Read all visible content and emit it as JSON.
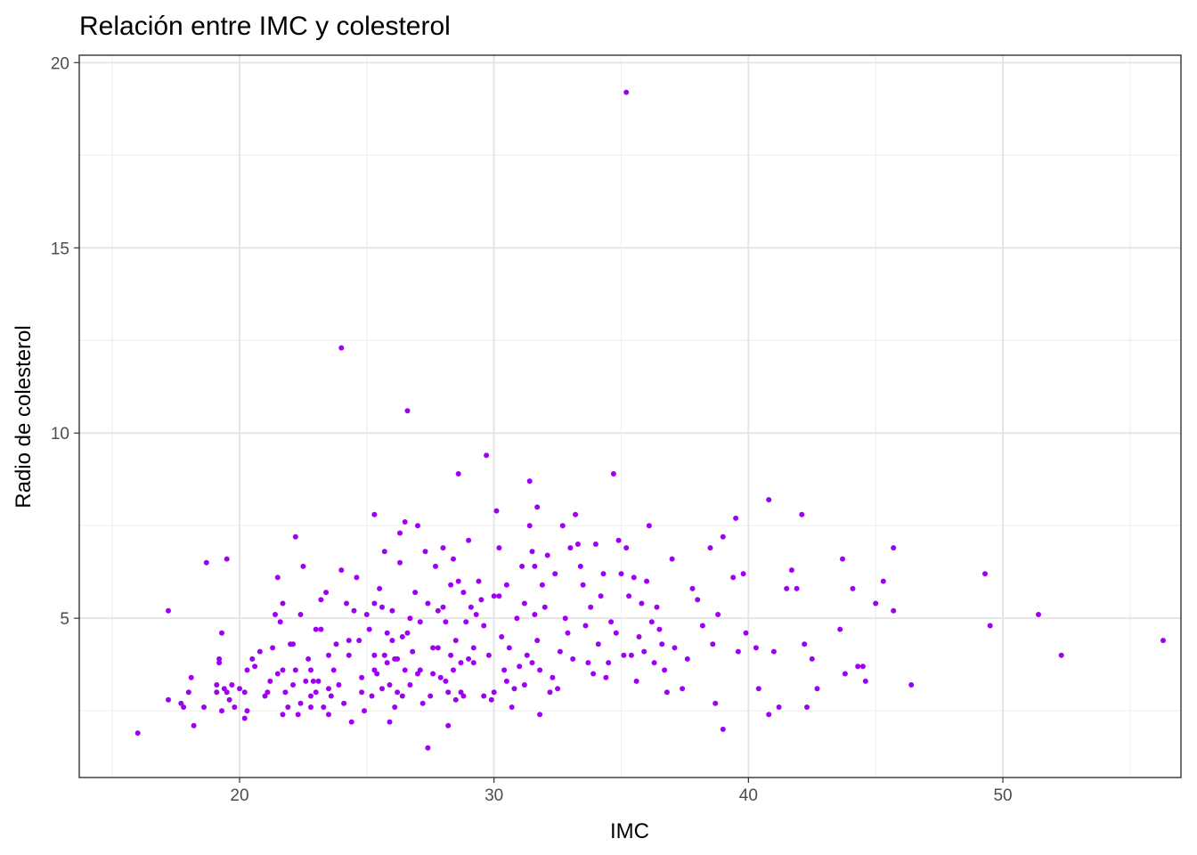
{
  "chart_data": {
    "type": "scatter",
    "title": "Relación entre IMC y colesterol",
    "xlabel": "IMC",
    "ylabel": "Radio de colesterol",
    "xlim": [
      13.7,
      57.0
    ],
    "ylim": [
      0.7,
      20.2
    ],
    "x_ticks": [
      20,
      30,
      40,
      50
    ],
    "y_ticks": [
      5,
      10,
      15,
      20
    ],
    "x_tick_labels": [
      "20",
      "30",
      "40",
      "50"
    ],
    "y_tick_labels": [
      "5",
      "10",
      "15",
      "20"
    ],
    "grid": true,
    "point_color": "#9f00f3",
    "points": [
      [
        16.0,
        1.9
      ],
      [
        17.2,
        5.2
      ],
      [
        17.2,
        2.8
      ],
      [
        17.7,
        2.7
      ],
      [
        17.8,
        2.6
      ],
      [
        18.0,
        3.0
      ],
      [
        18.1,
        3.4
      ],
      [
        18.2,
        2.1
      ],
      [
        18.6,
        2.6
      ],
      [
        18.7,
        6.5
      ],
      [
        19.1,
        3.0
      ],
      [
        19.1,
        3.2
      ],
      [
        19.2,
        3.8
      ],
      [
        19.2,
        3.9
      ],
      [
        19.3,
        4.6
      ],
      [
        19.3,
        2.5
      ],
      [
        19.4,
        3.1
      ],
      [
        19.5,
        3.0
      ],
      [
        19.5,
        6.6
      ],
      [
        19.6,
        2.8
      ],
      [
        19.7,
        3.2
      ],
      [
        19.8,
        2.6
      ],
      [
        20.0,
        3.1
      ],
      [
        20.2,
        2.3
      ],
      [
        20.2,
        3.0
      ],
      [
        20.3,
        3.6
      ],
      [
        20.3,
        2.5
      ],
      [
        20.5,
        3.9
      ],
      [
        20.6,
        3.7
      ],
      [
        20.8,
        4.1
      ],
      [
        21.0,
        2.9
      ],
      [
        21.1,
        3.0
      ],
      [
        21.2,
        3.3
      ],
      [
        21.3,
        4.2
      ],
      [
        21.4,
        5.1
      ],
      [
        21.5,
        6.1
      ],
      [
        21.5,
        3.5
      ],
      [
        21.6,
        4.9
      ],
      [
        21.7,
        5.4
      ],
      [
        21.7,
        3.6
      ],
      [
        21.7,
        2.4
      ],
      [
        21.8,
        3.0
      ],
      [
        21.9,
        2.6
      ],
      [
        22.0,
        4.3
      ],
      [
        22.1,
        4.3
      ],
      [
        22.1,
        3.2
      ],
      [
        22.2,
        7.2
      ],
      [
        22.2,
        3.6
      ],
      [
        22.3,
        2.4
      ],
      [
        22.4,
        5.1
      ],
      [
        22.4,
        2.7
      ],
      [
        22.5,
        6.4
      ],
      [
        22.6,
        3.3
      ],
      [
        22.7,
        3.9
      ],
      [
        22.8,
        2.9
      ],
      [
        22.8,
        3.6
      ],
      [
        22.8,
        2.6
      ],
      [
        22.9,
        3.3
      ],
      [
        23.0,
        4.7
      ],
      [
        23.0,
        3.0
      ],
      [
        23.1,
        3.3
      ],
      [
        23.2,
        5.5
      ],
      [
        23.2,
        4.7
      ],
      [
        23.3,
        2.6
      ],
      [
        23.4,
        5.7
      ],
      [
        23.5,
        4.0
      ],
      [
        23.5,
        3.1
      ],
      [
        23.5,
        2.4
      ],
      [
        23.6,
        2.9
      ],
      [
        23.7,
        3.6
      ],
      [
        23.8,
        4.3
      ],
      [
        23.9,
        3.2
      ],
      [
        24.0,
        6.3
      ],
      [
        24.0,
        12.3
      ],
      [
        24.1,
        2.7
      ],
      [
        24.2,
        5.4
      ],
      [
        24.3,
        4.4
      ],
      [
        24.3,
        4.0
      ],
      [
        24.4,
        2.2
      ],
      [
        24.5,
        5.2
      ],
      [
        24.6,
        6.1
      ],
      [
        24.7,
        4.4
      ],
      [
        24.8,
        3.4
      ],
      [
        24.8,
        3.0
      ],
      [
        24.9,
        2.5
      ],
      [
        25.0,
        5.1
      ],
      [
        25.1,
        4.7
      ],
      [
        25.2,
        2.9
      ],
      [
        25.3,
        7.8
      ],
      [
        25.3,
        4.0
      ],
      [
        25.3,
        3.6
      ],
      [
        25.3,
        5.4
      ],
      [
        25.4,
        3.5
      ],
      [
        25.5,
        5.8
      ],
      [
        25.6,
        3.1
      ],
      [
        25.6,
        5.3
      ],
      [
        25.7,
        6.8
      ],
      [
        25.7,
        4.0
      ],
      [
        25.8,
        4.6
      ],
      [
        25.8,
        3.8
      ],
      [
        25.9,
        3.2
      ],
      [
        25.9,
        2.2
      ],
      [
        26.0,
        5.2
      ],
      [
        26.0,
        4.4
      ],
      [
        26.1,
        2.6
      ],
      [
        26.1,
        3.9
      ],
      [
        26.2,
        3.0
      ],
      [
        26.2,
        3.9
      ],
      [
        26.3,
        6.5
      ],
      [
        26.3,
        7.3
      ],
      [
        26.4,
        4.5
      ],
      [
        26.4,
        2.9
      ],
      [
        26.5,
        7.6
      ],
      [
        26.5,
        3.6
      ],
      [
        26.6,
        10.6
      ],
      [
        26.6,
        4.6
      ],
      [
        26.7,
        3.2
      ],
      [
        26.7,
        5.0
      ],
      [
        26.8,
        4.1
      ],
      [
        26.9,
        5.7
      ],
      [
        27.0,
        3.5
      ],
      [
        27.0,
        7.5
      ],
      [
        27.1,
        4.9
      ],
      [
        27.1,
        3.6
      ],
      [
        27.2,
        2.7
      ],
      [
        27.3,
        6.8
      ],
      [
        27.4,
        5.4
      ],
      [
        27.4,
        1.5
      ],
      [
        27.5,
        2.9
      ],
      [
        27.6,
        4.2
      ],
      [
        27.6,
        3.5
      ],
      [
        27.7,
        6.4
      ],
      [
        27.8,
        5.2
      ],
      [
        27.8,
        4.2
      ],
      [
        27.9,
        3.4
      ],
      [
        28.0,
        6.9
      ],
      [
        28.0,
        5.3
      ],
      [
        28.1,
        4.9
      ],
      [
        28.1,
        3.3
      ],
      [
        28.2,
        3.0
      ],
      [
        28.2,
        2.1
      ],
      [
        28.3,
        5.9
      ],
      [
        28.3,
        4.0
      ],
      [
        28.4,
        6.6
      ],
      [
        28.4,
        3.6
      ],
      [
        28.5,
        4.4
      ],
      [
        28.5,
        2.8
      ],
      [
        28.6,
        8.9
      ],
      [
        28.6,
        6.0
      ],
      [
        28.7,
        3.8
      ],
      [
        28.7,
        3.0
      ],
      [
        28.8,
        5.7
      ],
      [
        28.8,
        2.9
      ],
      [
        28.9,
        4.9
      ],
      [
        29.0,
        7.1
      ],
      [
        29.0,
        3.9
      ],
      [
        29.1,
        5.3
      ],
      [
        29.2,
        4.2
      ],
      [
        29.2,
        3.8
      ],
      [
        29.3,
        5.1
      ],
      [
        29.4,
        6.0
      ],
      [
        29.5,
        5.5
      ],
      [
        29.6,
        2.9
      ],
      [
        29.6,
        4.8
      ],
      [
        29.7,
        9.4
      ],
      [
        29.8,
        4.0
      ],
      [
        29.9,
        2.8
      ],
      [
        30.0,
        5.6
      ],
      [
        30.0,
        3.0
      ],
      [
        30.1,
        7.9
      ],
      [
        30.2,
        6.9
      ],
      [
        30.2,
        5.6
      ],
      [
        30.3,
        4.5
      ],
      [
        30.4,
        3.6
      ],
      [
        30.5,
        3.3
      ],
      [
        30.5,
        5.9
      ],
      [
        30.6,
        4.2
      ],
      [
        30.7,
        2.6
      ],
      [
        30.8,
        3.1
      ],
      [
        30.9,
        5.0
      ],
      [
        31.0,
        3.7
      ],
      [
        31.1,
        6.4
      ],
      [
        31.2,
        3.2
      ],
      [
        31.2,
        5.4
      ],
      [
        31.3,
        4.0
      ],
      [
        31.4,
        8.7
      ],
      [
        31.4,
        7.5
      ],
      [
        31.5,
        6.8
      ],
      [
        31.5,
        3.8
      ],
      [
        31.6,
        5.1
      ],
      [
        31.6,
        6.4
      ],
      [
        31.7,
        8.0
      ],
      [
        31.7,
        4.4
      ],
      [
        31.8,
        2.4
      ],
      [
        31.8,
        3.6
      ],
      [
        31.9,
        5.9
      ],
      [
        32.0,
        5.3
      ],
      [
        32.1,
        6.7
      ],
      [
        32.2,
        3.0
      ],
      [
        32.3,
        3.4
      ],
      [
        32.4,
        6.2
      ],
      [
        32.5,
        3.1
      ],
      [
        32.6,
        4.1
      ],
      [
        32.7,
        7.5
      ],
      [
        32.8,
        5.0
      ],
      [
        32.9,
        4.6
      ],
      [
        33.0,
        6.9
      ],
      [
        33.1,
        3.9
      ],
      [
        33.2,
        7.8
      ],
      [
        33.3,
        7.0
      ],
      [
        33.4,
        6.4
      ],
      [
        33.5,
        5.9
      ],
      [
        33.6,
        4.8
      ],
      [
        33.7,
        3.8
      ],
      [
        33.8,
        5.3
      ],
      [
        33.9,
        3.5
      ],
      [
        34.0,
        7.0
      ],
      [
        34.1,
        4.3
      ],
      [
        34.2,
        5.6
      ],
      [
        34.3,
        6.2
      ],
      [
        34.4,
        3.4
      ],
      [
        34.5,
        3.8
      ],
      [
        34.6,
        4.9
      ],
      [
        34.7,
        8.9
      ],
      [
        34.8,
        4.6
      ],
      [
        34.9,
        7.1
      ],
      [
        35.0,
        6.2
      ],
      [
        35.1,
        4.0
      ],
      [
        35.2,
        6.9
      ],
      [
        35.2,
        19.2
      ],
      [
        35.3,
        5.6
      ],
      [
        35.4,
        4.0
      ],
      [
        35.5,
        6.1
      ],
      [
        35.6,
        3.3
      ],
      [
        35.7,
        4.5
      ],
      [
        35.8,
        5.4
      ],
      [
        35.9,
        4.1
      ],
      [
        36.0,
        6.0
      ],
      [
        36.1,
        7.5
      ],
      [
        36.2,
        4.9
      ],
      [
        36.3,
        3.8
      ],
      [
        36.4,
        5.3
      ],
      [
        36.5,
        4.7
      ],
      [
        36.6,
        4.3
      ],
      [
        36.7,
        3.6
      ],
      [
        36.8,
        3.0
      ],
      [
        37.0,
        6.6
      ],
      [
        37.1,
        4.2
      ],
      [
        37.4,
        3.1
      ],
      [
        37.6,
        3.9
      ],
      [
        37.8,
        5.8
      ],
      [
        38.0,
        5.5
      ],
      [
        38.2,
        4.8
      ],
      [
        38.5,
        6.9
      ],
      [
        38.6,
        4.3
      ],
      [
        38.7,
        2.7
      ],
      [
        38.8,
        5.1
      ],
      [
        39.0,
        7.2
      ],
      [
        39.0,
        2.0
      ],
      [
        39.4,
        6.1
      ],
      [
        39.5,
        7.7
      ],
      [
        39.6,
        4.1
      ],
      [
        39.8,
        6.2
      ],
      [
        39.9,
        4.6
      ],
      [
        40.3,
        4.2
      ],
      [
        40.4,
        3.1
      ],
      [
        40.8,
        8.2
      ],
      [
        40.8,
        2.4
      ],
      [
        41.0,
        4.1
      ],
      [
        41.2,
        2.6
      ],
      [
        41.5,
        5.8
      ],
      [
        41.7,
        6.3
      ],
      [
        41.9,
        5.8
      ],
      [
        42.1,
        7.8
      ],
      [
        42.2,
        4.3
      ],
      [
        42.3,
        2.6
      ],
      [
        42.5,
        3.9
      ],
      [
        42.7,
        3.1
      ],
      [
        43.6,
        4.7
      ],
      [
        43.7,
        6.6
      ],
      [
        43.8,
        3.5
      ],
      [
        44.1,
        5.8
      ],
      [
        44.3,
        3.7
      ],
      [
        44.5,
        3.7
      ],
      [
        44.6,
        3.3
      ],
      [
        45.0,
        5.4
      ],
      [
        45.3,
        6.0
      ],
      [
        45.7,
        5.2
      ],
      [
        45.7,
        6.9
      ],
      [
        46.4,
        3.2
      ],
      [
        49.3,
        6.2
      ],
      [
        49.5,
        4.8
      ],
      [
        51.4,
        5.1
      ],
      [
        52.3,
        4.0
      ],
      [
        56.3,
        4.4
      ]
    ]
  }
}
